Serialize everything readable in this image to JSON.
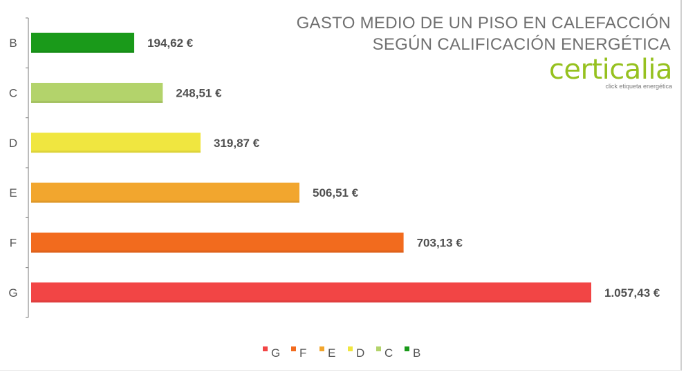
{
  "chart_data": {
    "type": "bar",
    "orientation": "horizontal",
    "title": "GASTO MEDIO DE UN PISO EN CALEFACCIÓN",
    "subtitle": "SEGÚN CALIFICACIÓN ENERGÉTICA",
    "categories": [
      "B",
      "C",
      "D",
      "E",
      "F",
      "G"
    ],
    "values": [
      194.62,
      248.51,
      319.87,
      506.51,
      703.13,
      1057.43
    ],
    "value_labels": [
      "194,62 €",
      "248,51 €",
      "319,87 €",
      "506,51 €",
      "703,13 €",
      "1.057,43 €"
    ],
    "colors": [
      "#1a9a1a",
      "#b3d36b",
      "#f0e640",
      "#f2a62e",
      "#f26b1e",
      "#f24545"
    ],
    "xlim": [
      0,
      1057.43
    ],
    "grid": false,
    "legend": {
      "placement": "bottom",
      "entries": [
        "G",
        "F",
        "E",
        "D",
        "C",
        "B"
      ],
      "colors": [
        "#f24545",
        "#f26b1e",
        "#f2a62e",
        "#f0e640",
        "#b3d36b",
        "#1a9a1a"
      ]
    }
  },
  "brand": {
    "logo_text": "certicalia",
    "tagline": "click etiqueta energética",
    "color": "#96c11f"
  }
}
